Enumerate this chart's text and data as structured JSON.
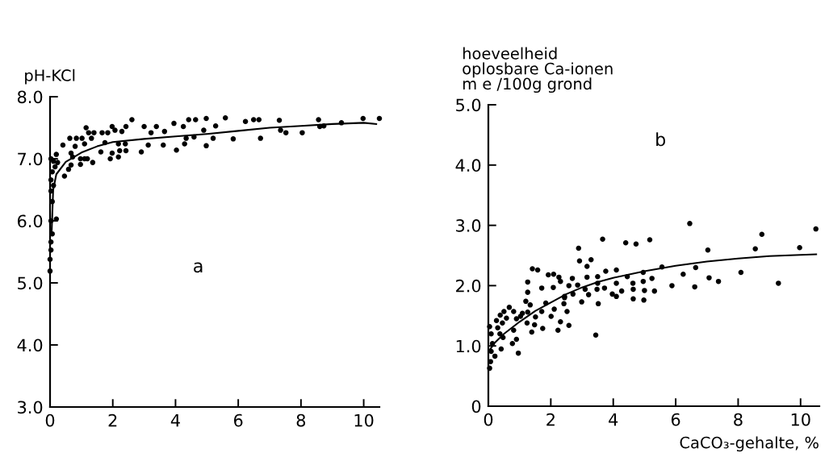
{
  "chart_data": [
    {
      "type": "scatter",
      "ylabel": "pH-KCl",
      "annotations": [
        "a"
      ],
      "xlim": [
        0,
        10.5
      ],
      "ylim": [
        3.0,
        8.0
      ],
      "xticks": [
        0,
        2,
        4,
        6,
        8,
        10
      ],
      "yticks": [
        {
          "value": 3,
          "label": "3.0"
        },
        {
          "value": 4,
          "label": "4.0"
        },
        {
          "value": 5,
          "label": "5.0"
        },
        {
          "value": 6,
          "label": "6.0"
        },
        {
          "value": 7,
          "label": "7.0"
        },
        {
          "value": 8,
          "label": "8.0"
        }
      ],
      "grid": false,
      "legend": false,
      "series": [
        {
          "color": "#000000",
          "marker": "circle",
          "x": [
            1.15,
            2.61,
            3.95,
            4.42,
            4.64,
            4.98,
            5.59,
            6.23,
            6.49,
            6.66,
            7.31,
            8.56,
            9.98,
            10.5,
            8.6,
            8.73,
            9.29,
            8.04,
            7.35,
            7.52,
            6.71,
            5.84,
            5.28,
            4.9,
            5.2,
            4.98,
            4.59,
            4.34,
            4.29,
            4.03,
            4.25,
            3.65,
            3.61,
            3.39,
            3.22,
            3.0,
            2.91,
            3.13,
            2.42,
            2.29,
            2.07,
            1.98,
            1.84,
            1.66,
            1.75,
            1.62,
            1.92,
            2.18,
            1.98,
            2.22,
            2.42,
            2.4,
            2.18,
            1.36,
            1.1,
            0.97,
            0.97,
            1.19,
            0.72,
            0.67,
            0.59,
            0.46,
            0.41,
            0.63,
            0.84,
            0.67,
            0.8,
            1.02,
            1.23,
            1.4,
            1.32,
            1.1,
            0.2,
            0.11,
            0.16,
            0.03,
            0.07,
            0.03,
            0.03,
            0.07,
            0.03,
            0.07,
            0.03,
            0.03,
            0.0,
            0.0,
            0.2,
            0.11,
            0.24
          ],
          "values": [
            7.5,
            7.63,
            7.57,
            7.63,
            7.63,
            7.65,
            7.66,
            7.6,
            7.63,
            7.63,
            7.62,
            7.63,
            7.65,
            7.65,
            7.52,
            7.53,
            7.58,
            7.42,
            7.46,
            7.42,
            7.33,
            7.32,
            7.53,
            7.46,
            7.33,
            7.21,
            7.35,
            7.33,
            7.24,
            7.14,
            7.52,
            7.44,
            7.22,
            7.52,
            7.42,
            7.52,
            7.11,
            7.22,
            7.52,
            7.44,
            7.46,
            7.52,
            7.42,
            7.42,
            7.26,
            7.11,
            7.0,
            7.03,
            7.09,
            7.13,
            7.13,
            7.24,
            7.24,
            6.94,
            7.0,
            6.91,
            7.0,
            7.0,
            7.03,
            6.9,
            6.83,
            6.72,
            7.22,
            7.33,
            7.33,
            7.09,
            7.2,
            7.33,
            7.42,
            7.42,
            7.33,
            7.24,
            7.07,
            6.96,
            6.87,
            7.0,
            6.79,
            6.66,
            6.48,
            6.31,
            6.0,
            5.79,
            5.66,
            5.53,
            5.38,
            5.19,
            6.03,
            6.57,
            6.94
          ]
        },
        {
          "type": "line",
          "color": "#000000",
          "marker": "none",
          "x": [
            0.05,
            0.1,
            0.2,
            0.5,
            1,
            1.5,
            2,
            3,
            4,
            5,
            6,
            7,
            8,
            9,
            10,
            10.4
          ],
          "values": [
            5.8,
            6.5,
            6.75,
            6.95,
            7.1,
            7.2,
            7.27,
            7.32,
            7.36,
            7.4,
            7.45,
            7.5,
            7.53,
            7.56,
            7.58,
            7.56
          ]
        }
      ]
    },
    {
      "type": "scatter",
      "ylabel": "hoeveelheid\noplosbare Ca-ionen\nm e /100g grond",
      "xlabel": "CaCO₃-gehalte, %",
      "annotations": [
        "b"
      ],
      "xlim": [
        0,
        10.6
      ],
      "ylim": [
        0,
        5.0
      ],
      "xticks": [
        0,
        2,
        4,
        6,
        8,
        10
      ],
      "yticks": [
        0,
        {
          "value": 1,
          "label": "1.0"
        },
        {
          "value": 2,
          "label": "2.0"
        },
        {
          "value": 3,
          "label": "3.0"
        },
        {
          "value": 4,
          "label": "4.0"
        },
        {
          "value": 5,
          "label": "5.0"
        }
      ],
      "grid": false,
      "legend": false,
      "series": [
        {
          "color": "#000000",
          "marker": "circle",
          "x": [
            6.45,
            10.49,
            8.76,
            3.66,
            4.4,
            4.73,
            5.17,
            2.89,
            7.03,
            8.55,
            9.97,
            2.92,
            3.29,
            3.16,
            1.41,
            1.58,
            6.64,
            5.56,
            6.24,
            8.09,
            4.1,
            3.76,
            4.45,
            4.96,
            5.24,
            7.07,
            7.37,
            9.29,
            5.88,
            6.61,
            4.63,
            4.96,
            4.1,
            3.5,
            3.16,
            2.69,
            2.58,
            2.86,
            1.92,
            2.09,
            2.26,
            2.31,
            2.08,
            1.71,
            1.26,
            1.26,
            3.1,
            3.5,
            3.48,
            3.72,
            3.21,
            2.71,
            2.44,
            3.97,
            4.1,
            4.27,
            4.64,
            5.0,
            5.32,
            4.64,
            4.98,
            2.99,
            3.52,
            2.42,
            1.84,
            2.11,
            2.52,
            1.2,
            1.34,
            1.71,
            1.51,
            1.26,
            1.09,
            0.81,
            0.67,
            0.5,
            0.38,
            0.58,
            0.26,
            0.45,
            0.9,
            0.81,
            0.3,
            0.04,
            0.09,
            0.37,
            0.47,
            0.9,
            0.77,
            0.41,
            0.13,
            0.09,
            0.21,
            0.07,
            0.04,
            0.96,
            3.44,
            1.39,
            1.74,
            2.23,
            2.31,
            2.58,
            2.01,
            1.48,
            1.24,
            1.03,
            2.44
          ],
          "values": [
            3.03,
            2.94,
            2.85,
            2.77,
            2.71,
            2.69,
            2.76,
            2.62,
            2.59,
            2.61,
            2.63,
            2.41,
            2.43,
            2.32,
            2.28,
            2.26,
            2.3,
            2.31,
            2.19,
            2.22,
            2.26,
            2.24,
            2.15,
            2.22,
            2.12,
            2.13,
            2.07,
            2.04,
            2.0,
            1.98,
            2.04,
            2.07,
            2.04,
            2.15,
            2.14,
            2.12,
            2.0,
            2.01,
            2.18,
            2.19,
            2.14,
            2.07,
            1.97,
            1.96,
            2.06,
            1.89,
            1.94,
            2.04,
            1.94,
            1.96,
            1.85,
            1.86,
            1.82,
            1.86,
            1.82,
            1.91,
            1.94,
            1.92,
            1.91,
            1.78,
            1.76,
            1.73,
            1.7,
            1.7,
            1.71,
            1.61,
            1.57,
            1.74,
            1.68,
            1.57,
            1.48,
            1.56,
            1.54,
            1.57,
            1.64,
            1.57,
            1.51,
            1.46,
            1.42,
            1.38,
            1.45,
            1.26,
            1.3,
            1.32,
            1.2,
            1.2,
            1.14,
            1.11,
            1.04,
            0.95,
            1.04,
            0.91,
            0.83,
            0.74,
            0.63,
            0.88,
            1.18,
            1.23,
            1.29,
            1.26,
            1.4,
            1.34,
            1.49,
            1.35,
            1.38,
            1.49,
            1.8
          ]
        },
        {
          "type": "line",
          "color": "#000000",
          "marker": "none",
          "x": [
            0,
            0.2,
            0.5,
            1,
            1.5,
            2,
            2.5,
            3,
            3.5,
            4,
            5,
            6,
            7,
            8,
            9,
            10,
            10.5
          ],
          "values": [
            0.9,
            1.05,
            1.2,
            1.4,
            1.58,
            1.72,
            1.86,
            1.97,
            2.06,
            2.13,
            2.24,
            2.33,
            2.4,
            2.45,
            2.49,
            2.51,
            2.52
          ]
        }
      ]
    }
  ]
}
